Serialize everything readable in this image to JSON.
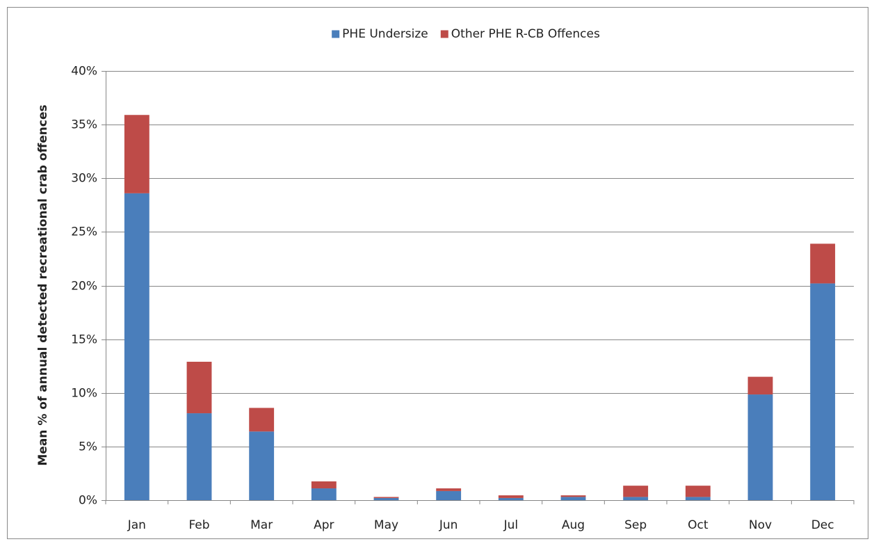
{
  "chart_data": {
    "type": "stacked_bar",
    "y_label": "Mean % of annual detected recreational crab offences",
    "categories": [
      "Jan",
      "Feb",
      "Mar",
      "Apr",
      "May",
      "Jun",
      "Jul",
      "Aug",
      "Sep",
      "Oct",
      "Nov",
      "Dec"
    ],
    "series": [
      {
        "name": "PHE Undersize",
        "color": "#4a7ebb",
        "values": [
          28.6,
          8.1,
          6.4,
          1.1,
          0.2,
          0.85,
          0.2,
          0.3,
          0.3,
          0.3,
          9.85,
          20.2
        ]
      },
      {
        "name": "Other PHE R-CB Offences",
        "color": "#be4b48",
        "values": [
          7.3,
          4.8,
          2.2,
          0.65,
          0.1,
          0.25,
          0.25,
          0.15,
          1.05,
          1.05,
          1.65,
          3.7
        ]
      }
    ],
    "ylim": [
      0,
      40
    ],
    "yticks": [
      {
        "value": 0,
        "label": "0%"
      },
      {
        "value": 5,
        "label": "5%"
      },
      {
        "value": 10,
        "label": "10%"
      },
      {
        "value": 15,
        "label": "15%"
      },
      {
        "value": 20,
        "label": "20%"
      },
      {
        "value": 25,
        "label": "25%"
      },
      {
        "value": 30,
        "label": "30%"
      },
      {
        "value": 35,
        "label": "35%"
      },
      {
        "value": 40,
        "label": "40%"
      }
    ],
    "grid": true,
    "legend": "top"
  }
}
